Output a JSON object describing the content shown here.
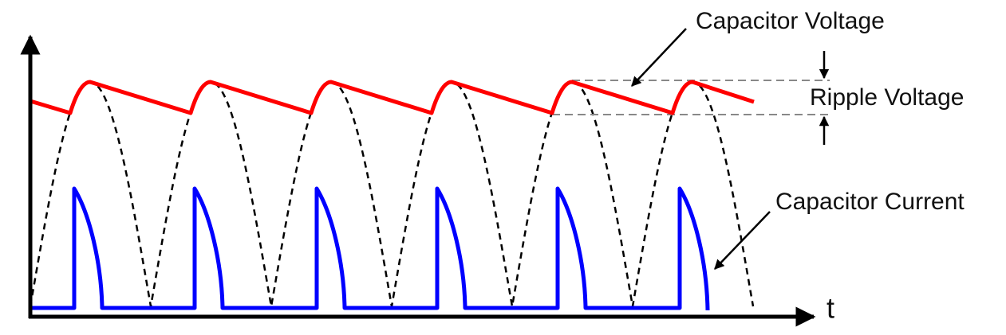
{
  "labels": {
    "capacitor_voltage": "Capacitor Voltage",
    "ripple_voltage": "Ripple Voltage",
    "capacitor_current": "Capacitor Current",
    "time_axis": "t"
  }
}
